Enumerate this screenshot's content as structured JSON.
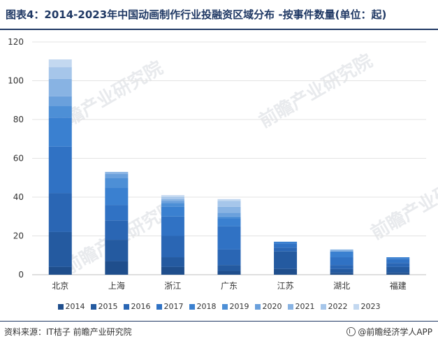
{
  "title": "图表4：2014-2023年中国动画制作行业投融资区域分布 -按事件数量(单位：起)",
  "source": "资料来源：IT桔子 前瞻产业研究院",
  "brand": "@前瞻经济学人APP",
  "watermark_text": "前瞻产业研究院",
  "colors": [
    "#1f4e8c",
    "#245aa0",
    "#2a66b4",
    "#3072c4",
    "#3a80d0",
    "#4d8fd6",
    "#6aa0dc",
    "#88b3e3",
    "#a6c6ea",
    "#c3d8f0"
  ],
  "chart_data": {
    "type": "bar",
    "stacked": true,
    "categories": [
      "北京",
      "上海",
      "浙江",
      "广东",
      "江苏",
      "湖北",
      "福建"
    ],
    "ylim": [
      0,
      120
    ],
    "yticks": [
      0,
      20,
      40,
      60,
      80,
      100,
      120
    ],
    "grid": true,
    "legend_position": "bottom",
    "series": [
      {
        "name": "2014",
        "values": [
          4,
          7,
          4,
          2,
          3,
          1,
          1
        ]
      },
      {
        "name": "2015",
        "values": [
          18,
          11,
          5,
          3,
          9,
          2,
          3
        ]
      },
      {
        "name": "2016",
        "values": [
          20,
          10,
          11,
          8,
          2,
          2,
          2
        ]
      },
      {
        "name": "2017",
        "values": [
          24,
          8,
          10,
          12,
          2,
          4,
          2
        ]
      },
      {
        "name": "2018",
        "values": [
          15,
          9,
          5,
          4,
          1,
          3,
          1
        ]
      },
      {
        "name": "2019",
        "values": [
          6,
          5,
          2,
          1,
          0,
          0,
          0
        ]
      },
      {
        "name": "2020",
        "values": [
          5,
          2,
          1,
          2,
          0,
          0,
          0
        ]
      },
      {
        "name": "2021",
        "values": [
          9,
          1,
          1,
          3,
          0,
          1,
          0
        ]
      },
      {
        "name": "2022",
        "values": [
          6,
          0,
          1,
          3,
          0,
          0,
          0
        ]
      },
      {
        "name": "2023",
        "values": [
          4,
          0,
          1,
          1,
          0,
          0,
          0
        ]
      }
    ]
  }
}
